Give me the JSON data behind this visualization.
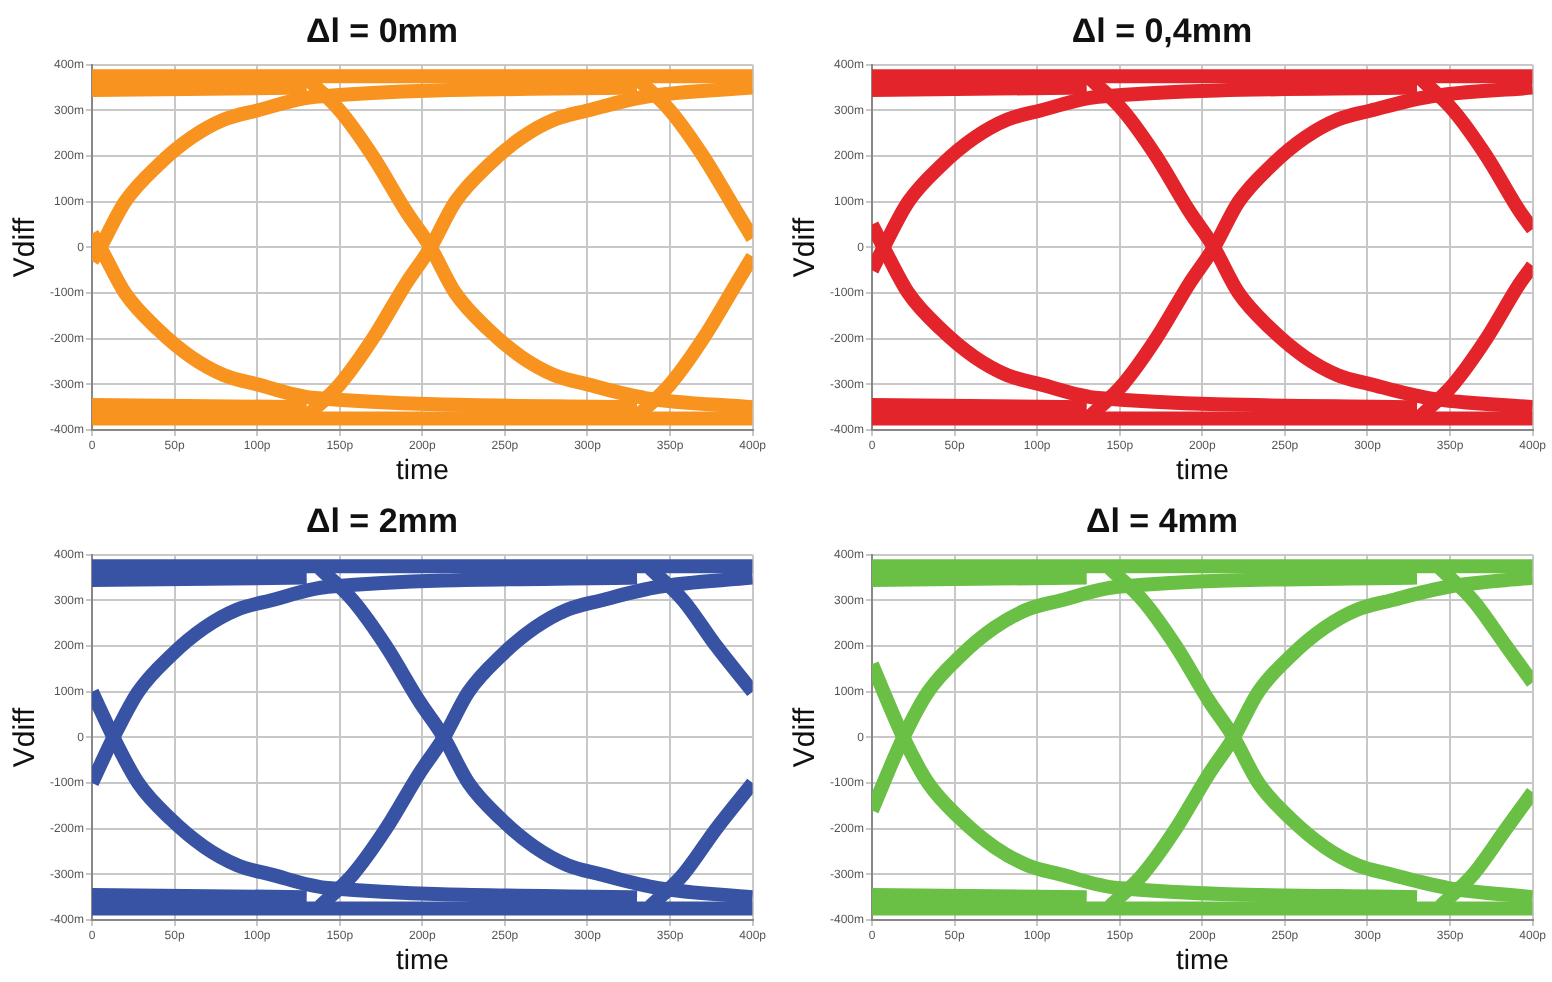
{
  "chart_data": [
    {
      "type": "line",
      "title": "Δl = 0mm",
      "xlabel": "time",
      "ylabel": "Vdiff",
      "xlim": [
        0,
        400
      ],
      "ylim": [
        -400,
        400
      ],
      "grid": true,
      "legend": false,
      "marker": "none",
      "line_style": "solid",
      "xticks": [
        {
          "value": 0,
          "label": "0"
        },
        {
          "value": 50,
          "label": "50p"
        },
        {
          "value": 100,
          "label": "100p"
        },
        {
          "value": 150,
          "label": "150p"
        },
        {
          "value": 200,
          "label": "200p"
        },
        {
          "value": 250,
          "label": "250p"
        },
        {
          "value": 300,
          "label": "300p"
        },
        {
          "value": 350,
          "label": "350p"
        },
        {
          "value": 400,
          "label": "400p"
        }
      ],
      "yticks": [
        {
          "value": -400,
          "label": "-400m"
        },
        {
          "value": -300,
          "label": "-300m"
        },
        {
          "value": -200,
          "label": "-200m"
        },
        {
          "value": -100,
          "label": "-100m"
        },
        {
          "value": 0,
          "label": "0"
        },
        {
          "value": 100,
          "label": "100m"
        },
        {
          "value": 200,
          "label": "200m"
        },
        {
          "value": 300,
          "label": "300m"
        },
        {
          "value": 400,
          "label": "400m"
        }
      ],
      "series": [
        {
          "color": "#f7931e",
          "x": [
            0,
            400
          ],
          "values": [
            375,
            375
          ]
        },
        {
          "color": "#f7931e",
          "x": [
            0,
            130
          ],
          "values": [
            345,
            350
          ]
        },
        {
          "color": "#f7931e",
          "x": [
            0,
            400
          ],
          "values": [
            -375,
            -375
          ]
        },
        {
          "color": "#f7931e",
          "x": [
            0,
            130
          ],
          "values": [
            -345,
            -350
          ]
        },
        {
          "color": "#f7931e",
          "x": [
            0,
            5,
            20,
            40,
            60,
            80,
            100,
            135,
            330
          ],
          "values": [
            -30,
            0,
            100,
            180,
            240,
            280,
            300,
            330,
            350
          ]
        },
        {
          "color": "#f7931e",
          "x": [
            0,
            5,
            20,
            40,
            60,
            80,
            100,
            135,
            330
          ],
          "values": [
            30,
            0,
            -100,
            -180,
            -240,
            -280,
            -300,
            -330,
            -350
          ]
        },
        {
          "color": "#f7931e",
          "x": [
            130,
            150,
            170,
            190,
            205,
            220,
            240,
            260,
            280,
            300,
            335,
            400
          ],
          "values": [
            370,
            300,
            200,
            80,
            0,
            -100,
            -180,
            -240,
            -280,
            -300,
            -330,
            -350
          ]
        },
        {
          "color": "#f7931e",
          "x": [
            130,
            150,
            170,
            190,
            205,
            220,
            240,
            260,
            280,
            300,
            335,
            400
          ],
          "values": [
            -370,
            -300,
            -200,
            -80,
            0,
            100,
            180,
            240,
            280,
            300,
            330,
            350
          ]
        },
        {
          "color": "#f7931e",
          "x": [
            330,
            350,
            370,
            390,
            400
          ],
          "values": [
            370,
            300,
            200,
            80,
            20
          ]
        },
        {
          "color": "#f7931e",
          "x": [
            330,
            350,
            370,
            390,
            400
          ],
          "values": [
            -370,
            -300,
            -200,
            -80,
            -20
          ]
        }
      ]
    },
    {
      "type": "line",
      "title": "Δl = 0,4mm",
      "xlabel": "time",
      "ylabel": "Vdiff",
      "xlim": [
        0,
        400
      ],
      "ylim": [
        -400,
        400
      ],
      "grid": true,
      "legend": false,
      "marker": "none",
      "line_style": "solid",
      "xticks": [
        {
          "value": 0,
          "label": "0"
        },
        {
          "value": 50,
          "label": "50p"
        },
        {
          "value": 100,
          "label": "100p"
        },
        {
          "value": 150,
          "label": "150p"
        },
        {
          "value": 200,
          "label": "200p"
        },
        {
          "value": 250,
          "label": "250p"
        },
        {
          "value": 300,
          "label": "300p"
        },
        {
          "value": 350,
          "label": "350p"
        },
        {
          "value": 400,
          "label": "400p"
        }
      ],
      "yticks": [
        {
          "value": -400,
          "label": "-400m"
        },
        {
          "value": -300,
          "label": "-300m"
        },
        {
          "value": -200,
          "label": "-200m"
        },
        {
          "value": -100,
          "label": "-100m"
        },
        {
          "value": 0,
          "label": "0"
        },
        {
          "value": 100,
          "label": "100m"
        },
        {
          "value": 200,
          "label": "200m"
        },
        {
          "value": 300,
          "label": "300m"
        },
        {
          "value": 400,
          "label": "400m"
        }
      ],
      "series": [
        {
          "color": "#e3242b",
          "x": [
            0,
            400
          ],
          "values": [
            375,
            375
          ]
        },
        {
          "color": "#e3242b",
          "x": [
            0,
            130
          ],
          "values": [
            345,
            350
          ]
        },
        {
          "color": "#e3242b",
          "x": [
            0,
            400
          ],
          "values": [
            -375,
            -375
          ]
        },
        {
          "color": "#e3242b",
          "x": [
            0,
            130
          ],
          "values": [
            -345,
            -350
          ]
        },
        {
          "color": "#e3242b",
          "x": [
            0,
            7,
            22,
            42,
            62,
            82,
            102,
            137,
            330
          ],
          "values": [
            -50,
            0,
            100,
            180,
            240,
            280,
            300,
            330,
            350
          ]
        },
        {
          "color": "#e3242b",
          "x": [
            0,
            7,
            22,
            42,
            62,
            82,
            102,
            137,
            330
          ],
          "values": [
            50,
            0,
            -100,
            -180,
            -240,
            -280,
            -300,
            -330,
            -350
          ]
        },
        {
          "color": "#e3242b",
          "x": [
            132,
            152,
            172,
            192,
            207,
            222,
            242,
            262,
            282,
            302,
            337,
            400
          ],
          "values": [
            370,
            300,
            200,
            80,
            0,
            -100,
            -180,
            -240,
            -280,
            -300,
            -330,
            -350
          ]
        },
        {
          "color": "#e3242b",
          "x": [
            132,
            152,
            172,
            192,
            207,
            222,
            242,
            262,
            282,
            302,
            337,
            400
          ],
          "values": [
            -370,
            -300,
            -200,
            -80,
            0,
            100,
            180,
            240,
            280,
            300,
            330,
            350
          ]
        },
        {
          "color": "#e3242b",
          "x": [
            332,
            352,
            372,
            392,
            400
          ],
          "values": [
            370,
            300,
            200,
            80,
            40
          ]
        },
        {
          "color": "#e3242b",
          "x": [
            332,
            352,
            372,
            392,
            400
          ],
          "values": [
            -370,
            -300,
            -200,
            -80,
            -40
          ]
        }
      ]
    },
    {
      "type": "line",
      "title": "Δl = 2mm",
      "xlabel": "time",
      "ylabel": "Vdiff",
      "xlim": [
        0,
        400
      ],
      "ylim": [
        -400,
        400
      ],
      "grid": true,
      "legend": false,
      "marker": "none",
      "line_style": "solid",
      "xticks": [
        {
          "value": 0,
          "label": "0"
        },
        {
          "value": 50,
          "label": "50p"
        },
        {
          "value": 100,
          "label": "100p"
        },
        {
          "value": 150,
          "label": "150p"
        },
        {
          "value": 200,
          "label": "200p"
        },
        {
          "value": 250,
          "label": "250p"
        },
        {
          "value": 300,
          "label": "300p"
        },
        {
          "value": 350,
          "label": "350p"
        },
        {
          "value": 400,
          "label": "400p"
        }
      ],
      "yticks": [
        {
          "value": -400,
          "label": "-400m"
        },
        {
          "value": -300,
          "label": "-300m"
        },
        {
          "value": -200,
          "label": "-200m"
        },
        {
          "value": -100,
          "label": "-100m"
        },
        {
          "value": 0,
          "label": "0"
        },
        {
          "value": 100,
          "label": "100m"
        },
        {
          "value": 200,
          "label": "200m"
        },
        {
          "value": 300,
          "label": "300m"
        },
        {
          "value": 400,
          "label": "400m"
        }
      ],
      "series": [
        {
          "color": "#3953a4",
          "x": [
            0,
            400
          ],
          "values": [
            375,
            375
          ]
        },
        {
          "color": "#3953a4",
          "x": [
            0,
            130
          ],
          "values": [
            345,
            350
          ]
        },
        {
          "color": "#3953a4",
          "x": [
            0,
            400
          ],
          "values": [
            -375,
            -375
          ]
        },
        {
          "color": "#3953a4",
          "x": [
            0,
            130
          ],
          "values": [
            -345,
            -350
          ]
        },
        {
          "color": "#3953a4",
          "x": [
            0,
            13,
            28,
            48,
            68,
            88,
            108,
            143,
            330
          ],
          "values": [
            -100,
            0,
            100,
            180,
            240,
            280,
            300,
            330,
            350
          ]
        },
        {
          "color": "#3953a4",
          "x": [
            0,
            13,
            28,
            48,
            68,
            88,
            108,
            143,
            330
          ],
          "values": [
            100,
            0,
            -100,
            -180,
            -240,
            -280,
            -300,
            -330,
            -350
          ]
        },
        {
          "color": "#3953a4",
          "x": [
            138,
            158,
            178,
            198,
            213,
            228,
            248,
            268,
            288,
            308,
            343,
            400
          ],
          "values": [
            370,
            300,
            200,
            80,
            0,
            -100,
            -180,
            -240,
            -280,
            -300,
            -330,
            -350
          ]
        },
        {
          "color": "#3953a4",
          "x": [
            138,
            158,
            178,
            198,
            213,
            228,
            248,
            268,
            288,
            308,
            343,
            400
          ],
          "values": [
            -370,
            -300,
            -200,
            -80,
            0,
            100,
            180,
            240,
            280,
            300,
            330,
            350
          ]
        },
        {
          "color": "#3953a4",
          "x": [
            338,
            358,
            378,
            400
          ],
          "values": [
            370,
            300,
            200,
            100
          ]
        },
        {
          "color": "#3953a4",
          "x": [
            338,
            358,
            378,
            400
          ],
          "values": [
            -370,
            -300,
            -200,
            -100
          ]
        }
      ]
    },
    {
      "type": "line",
      "title": "Δl = 4mm",
      "xlabel": "time",
      "ylabel": "Vdiff",
      "xlim": [
        0,
        400
      ],
      "ylim": [
        -400,
        400
      ],
      "grid": true,
      "legend": false,
      "marker": "none",
      "line_style": "solid",
      "xticks": [
        {
          "value": 0,
          "label": "0"
        },
        {
          "value": 50,
          "label": "50p"
        },
        {
          "value": 100,
          "label": "100p"
        },
        {
          "value": 150,
          "label": "150p"
        },
        {
          "value": 200,
          "label": "200p"
        },
        {
          "value": 250,
          "label": "250p"
        },
        {
          "value": 300,
          "label": "300p"
        },
        {
          "value": 350,
          "label": "350p"
        },
        {
          "value": 400,
          "label": "400p"
        }
      ],
      "yticks": [
        {
          "value": -400,
          "label": "-400m"
        },
        {
          "value": -300,
          "label": "-300m"
        },
        {
          "value": -200,
          "label": "-200m"
        },
        {
          "value": -100,
          "label": "-100m"
        },
        {
          "value": 0,
          "label": "0"
        },
        {
          "value": 100,
          "label": "100m"
        },
        {
          "value": 200,
          "label": "200m"
        },
        {
          "value": 300,
          "label": "300m"
        },
        {
          "value": 400,
          "label": "400m"
        }
      ],
      "series": [
        {
          "color": "#6abf45",
          "x": [
            0,
            400
          ],
          "values": [
            375,
            375
          ]
        },
        {
          "color": "#6abf45",
          "x": [
            0,
            130
          ],
          "values": [
            345,
            350
          ]
        },
        {
          "color": "#6abf45",
          "x": [
            0,
            400
          ],
          "values": [
            -375,
            -375
          ]
        },
        {
          "color": "#6abf45",
          "x": [
            0,
            130
          ],
          "values": [
            -345,
            -350
          ]
        },
        {
          "color": "#6abf45",
          "x": [
            0,
            19,
            34,
            54,
            74,
            94,
            114,
            149,
            330
          ],
          "values": [
            -160,
            0,
            100,
            180,
            240,
            280,
            300,
            330,
            350
          ]
        },
        {
          "color": "#6abf45",
          "x": [
            0,
            19,
            34,
            54,
            74,
            94,
            114,
            149,
            330
          ],
          "values": [
            160,
            0,
            -100,
            -180,
            -240,
            -280,
            -300,
            -330,
            -350
          ]
        },
        {
          "color": "#6abf45",
          "x": [
            144,
            164,
            184,
            204,
            219,
            234,
            254,
            274,
            294,
            314,
            349,
            400
          ],
          "values": [
            370,
            300,
            200,
            80,
            0,
            -100,
            -180,
            -240,
            -280,
            -300,
            -330,
            -350
          ]
        },
        {
          "color": "#6abf45",
          "x": [
            144,
            164,
            184,
            204,
            219,
            234,
            254,
            274,
            294,
            314,
            349,
            400
          ],
          "values": [
            -370,
            -300,
            -200,
            -80,
            0,
            100,
            180,
            240,
            280,
            300,
            330,
            350
          ]
        },
        {
          "color": "#6abf45",
          "x": [
            344,
            364,
            384,
            400
          ],
          "values": [
            370,
            300,
            200,
            120
          ]
        },
        {
          "color": "#6abf45",
          "x": [
            344,
            364,
            384,
            400
          ],
          "values": [
            -370,
            -300,
            -200,
            -120
          ]
        }
      ]
    }
  ]
}
